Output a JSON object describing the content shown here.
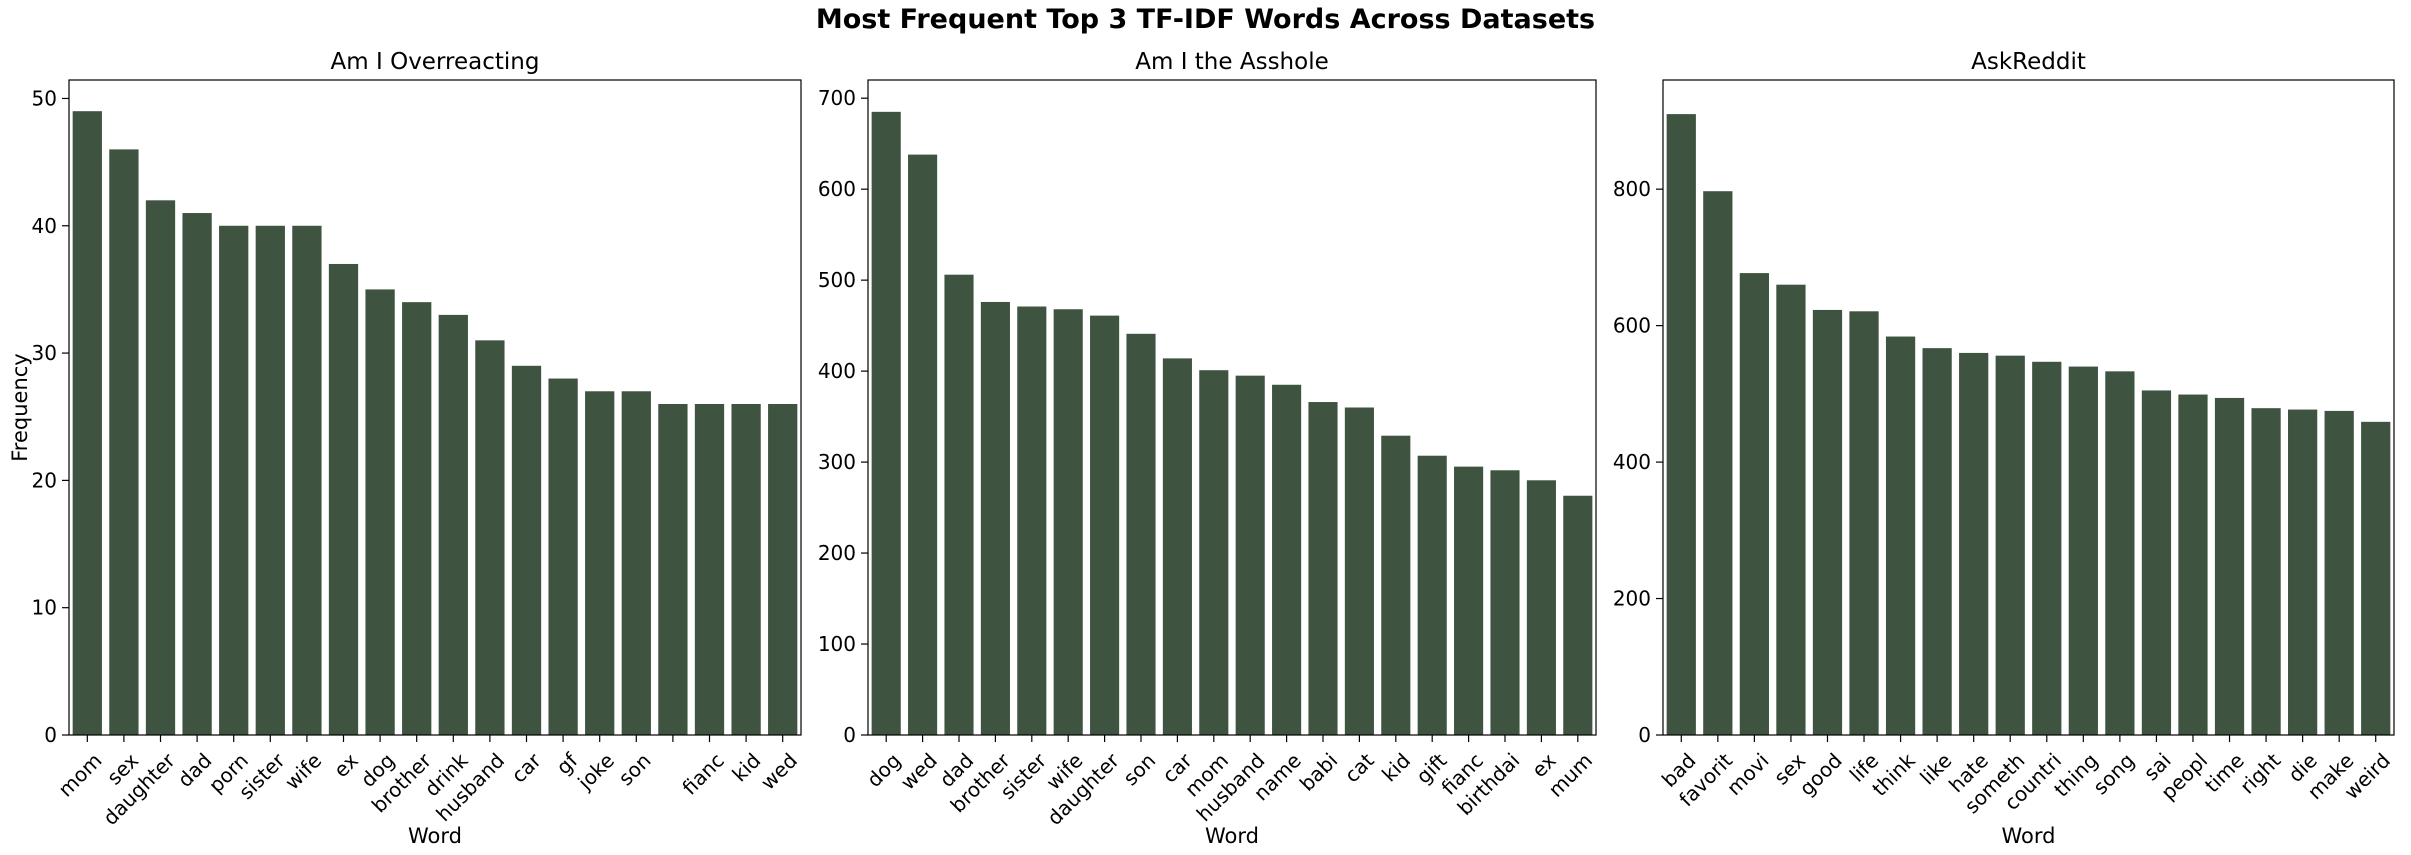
{
  "figure": {
    "title": "Most Frequent Top 3 TF-IDF Words Across Datasets"
  },
  "colors": {
    "bar": "#3e5440",
    "axis": "#000000",
    "background": "#ffffff"
  },
  "chart_data": [
    {
      "type": "bar",
      "title": "Am I Overreacting",
      "xlabel": "Word",
      "ylabel": "Frequency",
      "ylim": [
        0,
        51.45
      ],
      "yticks": [
        0,
        10,
        20,
        30,
        40,
        50
      ],
      "categories": [
        "mom",
        "sex",
        "daughter",
        "dad",
        "porn",
        "sister",
        "wife",
        "ex",
        "dog",
        "brother",
        "drink",
        "husband",
        "car",
        "gf",
        "joke",
        "son",
        "",
        "fianc",
        "kid",
        "wed"
      ],
      "values": [
        49,
        46,
        42,
        41,
        40,
        40,
        40,
        37,
        35,
        34,
        33,
        31,
        29,
        28,
        27,
        27,
        26,
        26,
        26,
        26
      ]
    },
    {
      "type": "bar",
      "title": "Am I the Asshole",
      "xlabel": "Word",
      "ylabel": "",
      "ylim": [
        0,
        720
      ],
      "yticks": [
        0,
        100,
        200,
        300,
        400,
        500,
        600,
        700
      ],
      "categories": [
        "dog",
        "wed",
        "dad",
        "brother",
        "sister",
        "wife",
        "daughter",
        "son",
        "car",
        "mom",
        "husband",
        "name",
        "babi",
        "cat",
        "kid",
        "gift",
        "fianc",
        "birthdai",
        "ex",
        "mum"
      ],
      "values": [
        685,
        638,
        506,
        476,
        471,
        468,
        461,
        441,
        414,
        401,
        395,
        385,
        366,
        360,
        329,
        307,
        295,
        291,
        280,
        263
      ]
    },
    {
      "type": "bar",
      "title": "AskReddit",
      "xlabel": "Word",
      "ylabel": "",
      "ylim": [
        0,
        960
      ],
      "yticks": [
        0,
        200,
        400,
        600,
        800
      ],
      "categories": [
        "bad",
        "favorit",
        "movi",
        "sex",
        "good",
        "life",
        "think",
        "like",
        "hate",
        "someth",
        "countri",
        "thing",
        "song",
        "sai",
        "peopl",
        "time",
        "right",
        "die",
        "make",
        "weird"
      ],
      "values": [
        910,
        797,
        677,
        660,
        623,
        621,
        584,
        567,
        560,
        556,
        547,
        540,
        533,
        505,
        499,
        494,
        479,
        477,
        475,
        459
      ]
    }
  ]
}
